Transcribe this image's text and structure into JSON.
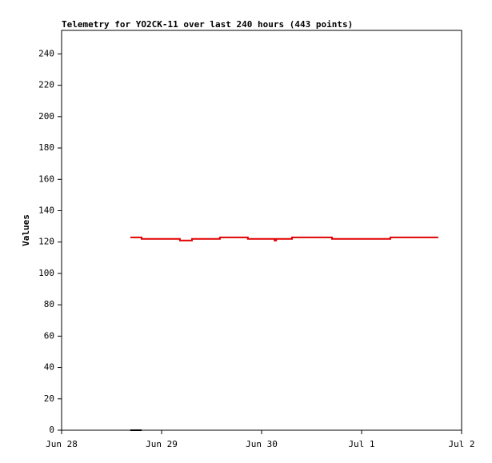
{
  "chart_data": {
    "type": "line",
    "title": "Telemetry for YO2CK-11 over last 240 hours (443 points)",
    "y_label": "Values",
    "x": [
      16.5,
      19.2,
      19.2,
      28.4,
      28.4,
      31.3,
      31.3,
      38.0,
      38.0,
      44.7,
      44.7,
      51.1,
      51.1,
      51.5,
      51.5,
      55.3,
      55.3,
      58.8,
      58.8,
      64.9,
      64.9,
      78.9,
      78.9,
      90.4
    ],
    "series": [
      {
        "color": "#e00000",
        "values": [
          123,
          123,
          122,
          122,
          121,
          121,
          122,
          122,
          123,
          123,
          122,
          122,
          121,
          121,
          122,
          122,
          123,
          123,
          123,
          123,
          122,
          122,
          123,
          123
        ]
      },
      {
        "color": "#000000",
        "values": [
          0,
          0,
          null,
          null,
          null,
          null,
          null,
          null,
          null,
          null,
          null,
          null,
          null,
          null,
          null,
          null,
          null,
          null,
          null,
          null,
          null,
          null,
          null,
          0
        ]
      }
    ],
    "xlim": [
      0,
      96
    ],
    "xticks": [
      {
        "value": 0,
        "label": "Jun 28"
      },
      {
        "value": 24,
        "label": "Jun 29"
      },
      {
        "value": 48,
        "label": "Jun 30"
      },
      {
        "value": 72,
        "label": "Jul 1"
      },
      {
        "value": 96,
        "label": "Jul 2"
      }
    ],
    "ylim": [
      0,
      255
    ],
    "yticks": [
      0,
      20,
      40,
      60,
      80,
      100,
      120,
      140,
      160,
      180,
      200,
      220,
      240
    ]
  }
}
